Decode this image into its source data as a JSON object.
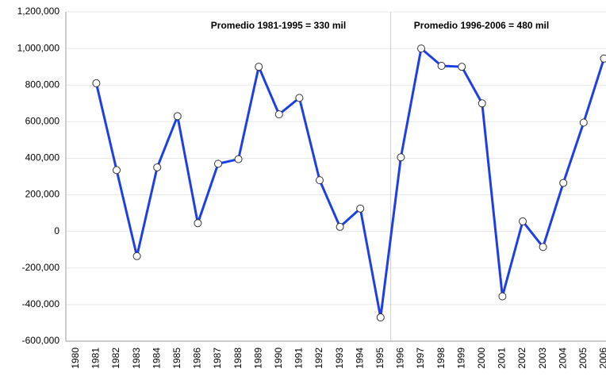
{
  "chart_data": {
    "type": "line",
    "categories": [
      "1980",
      "1981",
      "1982",
      "1983",
      "1984",
      "1985",
      "1986",
      "1987",
      "1988",
      "1989",
      "1990",
      "1991",
      "1992",
      "1993",
      "1994",
      "1995",
      "1996",
      "1997",
      "1998",
      "1999",
      "2000",
      "2001",
      "2002",
      "2003",
      "2004",
      "2005",
      "2006"
    ],
    "series": [
      {
        "color": "#1f3fe6",
        "values": [
          null,
          810000,
          335000,
          -135000,
          350000,
          630000,
          45000,
          370000,
          395000,
          900000,
          640000,
          730000,
          280000,
          25000,
          125000,
          -470000,
          405000,
          1000000,
          905000,
          900000,
          700000,
          -355000,
          55000,
          -85000,
          265000,
          595000,
          945000
        ]
      }
    ],
    "ylim": [
      -600000,
      1200000
    ],
    "yticks": [
      {
        "value": -600000,
        "label": "-600,000"
      },
      {
        "value": -400000,
        "label": "-400,000"
      },
      {
        "value": -200000,
        "label": "-200,000"
      },
      0,
      {
        "value": 200000,
        "label": "200,000"
      },
      {
        "value": 400000,
        "label": "400,000"
      },
      {
        "value": 600000,
        "label": "600,000"
      },
      {
        "value": 800000,
        "label": "800,000"
      },
      {
        "value": 1000000,
        "label": "1,000,000"
      },
      {
        "value": 1200000,
        "label": "1,200,000"
      }
    ],
    "grid": true,
    "annotations": [
      "Promedio 1981-1995 = 330 mil",
      "Promedio 1996-2006 = 480 mil"
    ]
  }
}
